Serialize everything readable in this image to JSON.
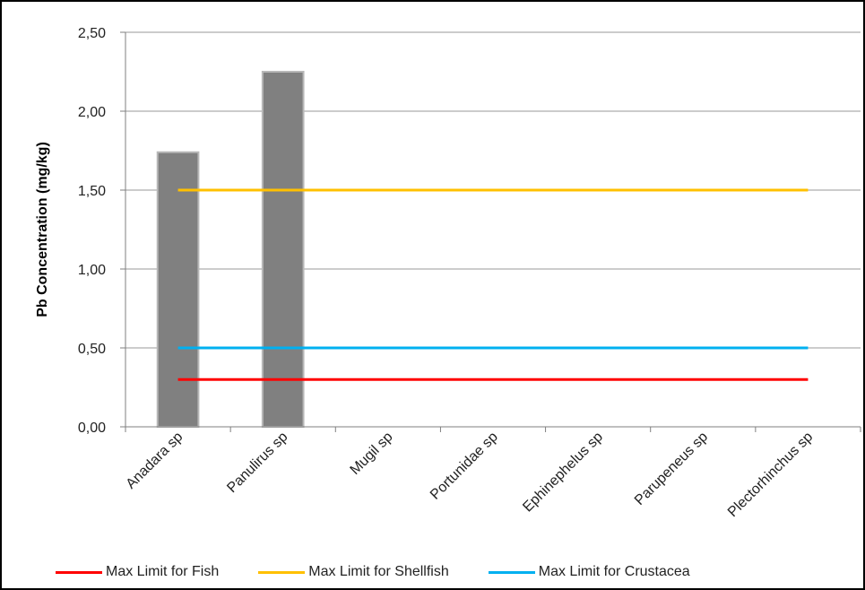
{
  "chart_data": {
    "type": "bar",
    "categories": [
      "Anadara sp",
      "Panulirus sp",
      "Mugil sp",
      "Portunidae sp",
      "Ephinephelus sp",
      "Parupeneus sp",
      "Plectorhinchus sp"
    ],
    "values": [
      1.74,
      2.25,
      null,
      null,
      null,
      null,
      null
    ],
    "bar_color": "#808080",
    "reference_lines": [
      {
        "name": "Max Limit for Fish",
        "value": 0.3,
        "color": "#ff0000"
      },
      {
        "name": "Max Limit for Shellfish",
        "value": 1.5,
        "color": "#ffc000"
      },
      {
        "name": "Max Limit for Crustacea",
        "value": 0.5,
        "color": "#00b0f0"
      }
    ],
    "ylabel": "Pb  Concentration  (mg/kg)",
    "ylim": [
      0,
      2.5
    ],
    "yticks": [
      "0,00",
      "0,50",
      "1,00",
      "1,50",
      "2,00",
      "2,50"
    ],
    "grid": true,
    "legend_position": "bottom"
  }
}
